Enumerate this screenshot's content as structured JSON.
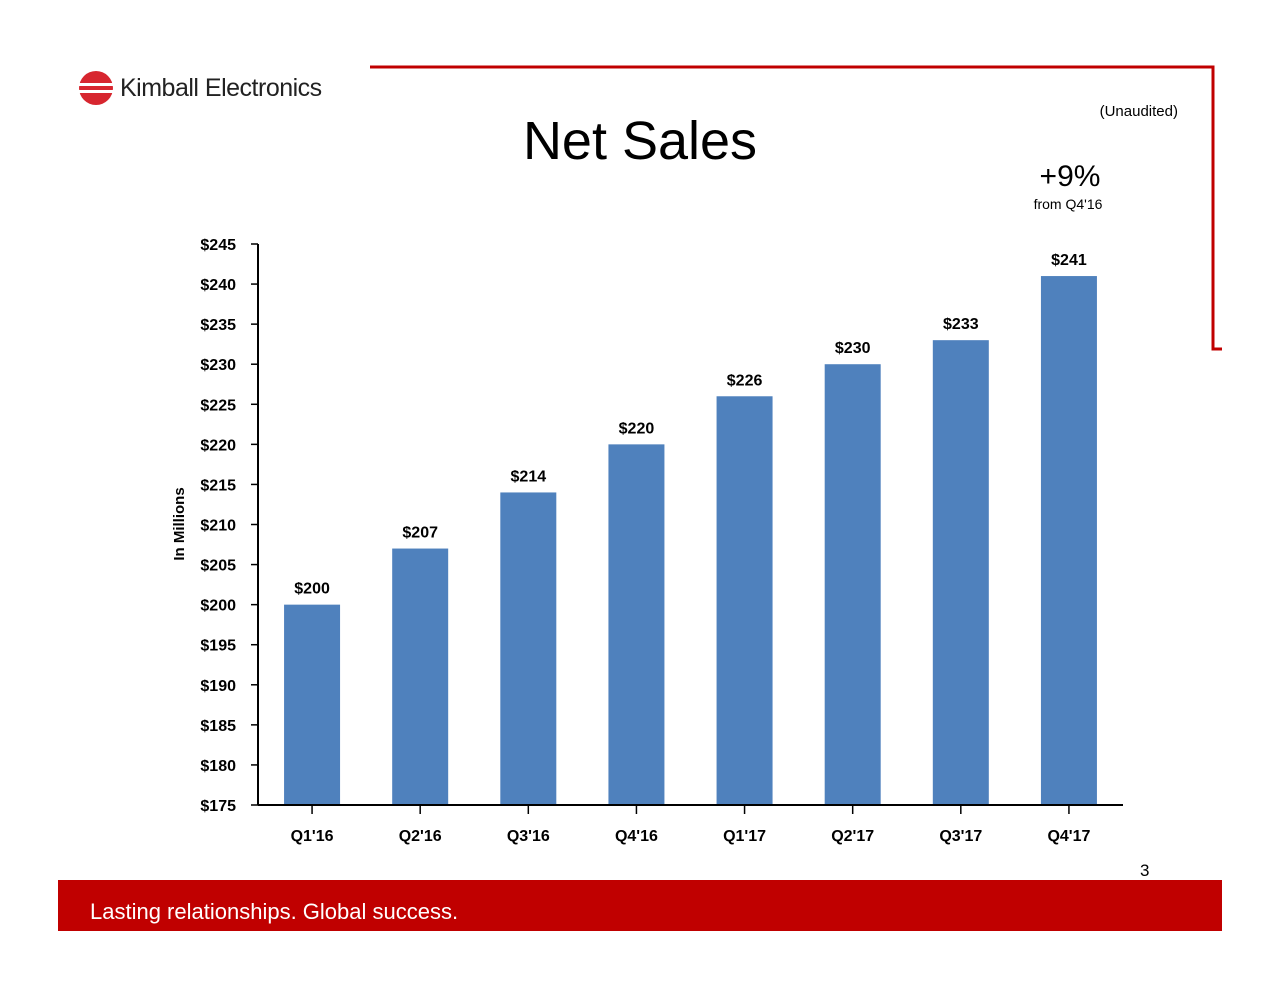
{
  "header": {
    "logo_text": "Kimball Electronics",
    "title": "Net Sales",
    "note": "(Unaudited)",
    "growth": "+9%",
    "growth_sub": "from Q4'16"
  },
  "footer": {
    "tagline": "Lasting relationships. Global success.",
    "page_number": "3"
  },
  "colors": {
    "bar": "#4f81bd",
    "accent": "#c00000"
  },
  "chart_data": {
    "type": "bar",
    "categories": [
      "Q1'16",
      "Q2'16",
      "Q3'16",
      "Q4'16",
      "Q1'17",
      "Q2'17",
      "Q3'17",
      "Q4'17"
    ],
    "values": [
      200,
      207,
      214,
      220,
      226,
      230,
      233,
      241
    ],
    "data_labels": [
      "$200",
      "$207",
      "$214",
      "$220",
      "$226",
      "$230",
      "$233",
      "$241"
    ],
    "ylabel": "In Millions",
    "xlabel": "",
    "ylim": [
      175,
      245
    ],
    "yticks": [
      175,
      180,
      185,
      190,
      195,
      200,
      205,
      210,
      215,
      220,
      225,
      230,
      235,
      240,
      245
    ],
    "ytick_labels": [
      "$175",
      "$180",
      "$185",
      "$190",
      "$195",
      "$200",
      "$205",
      "$210",
      "$215",
      "$220",
      "$225",
      "$230",
      "$235",
      "$240",
      "$245"
    ],
    "grid": false,
    "legend": "none"
  }
}
